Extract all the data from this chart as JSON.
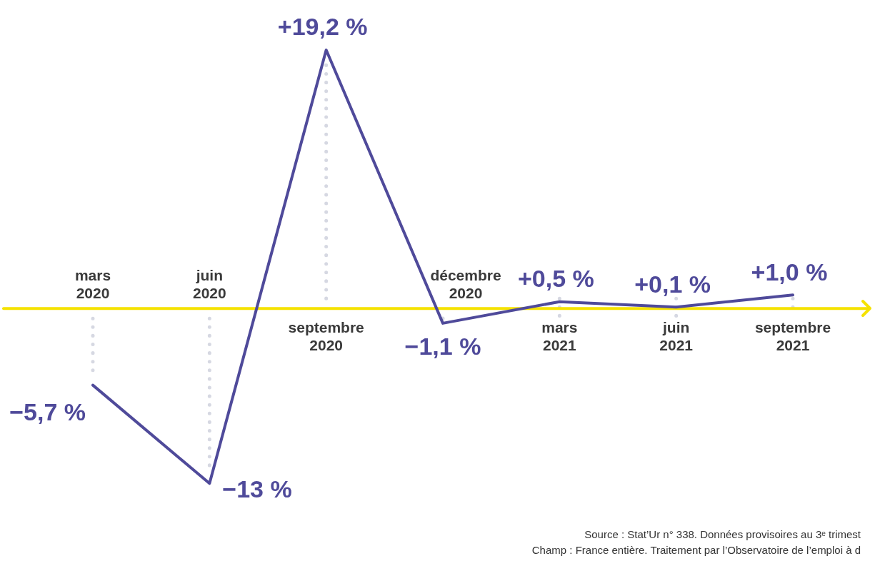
{
  "chart_data": {
    "type": "line",
    "categories": [
      "mars 2020",
      "juin 2020",
      "septembre 2020",
      "décembre 2020",
      "mars 2021",
      "juin 2021",
      "septembre 2021"
    ],
    "series": [
      {
        "color": "#4f4a9a",
        "values": [
          -5.7,
          -13,
          19.2,
          -1.1,
          0.5,
          0.1,
          1.0
        ],
        "value_labels": [
          "−5,7 %",
          "−13 %",
          "+19,2 %",
          "−1,1 %",
          "+0,5 %",
          "+0,1 %",
          "+1,0 %"
        ]
      }
    ],
    "tick_labels": "x",
    "legend": false,
    "marker": "none",
    "line_style": "solid",
    "annotations": [
      "Source : Stat’Ur n° 338. Données provisoires au 3ᵉ trimest",
      "Champ : France entière. Traitement par l’Observatoire de l’emploi à d"
    ]
  }
}
